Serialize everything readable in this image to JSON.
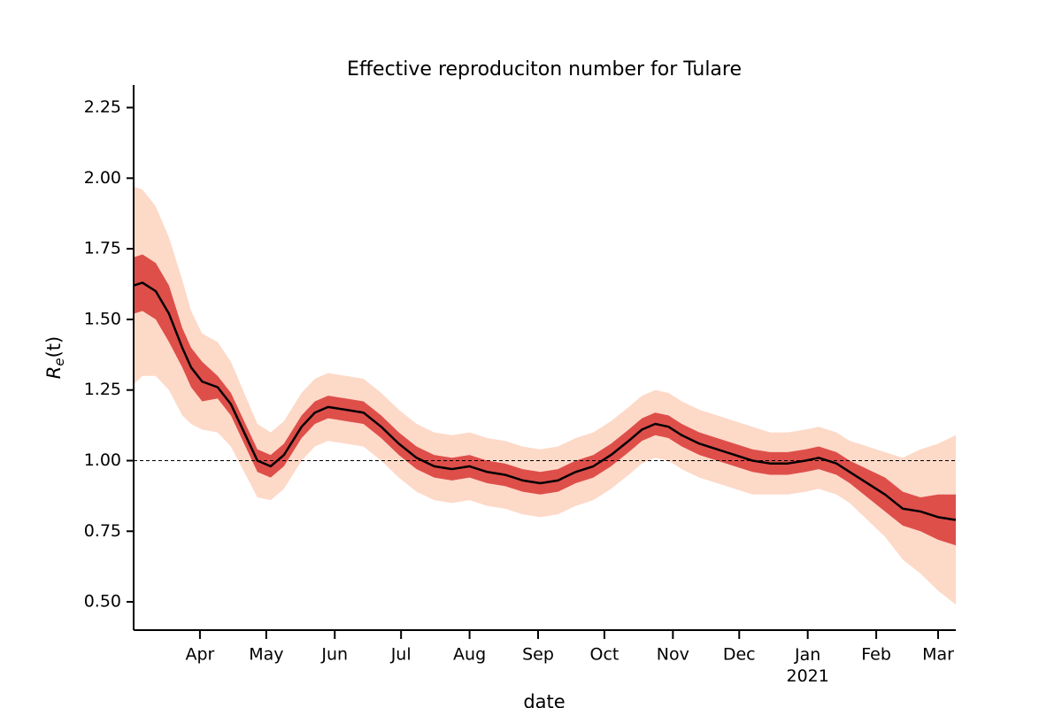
{
  "chart_data": {
    "type": "line",
    "title": "Effective reproduciton number for Tulare",
    "xlabel": "date",
    "ylabel": [
      "R",
      "e",
      "(t)"
    ],
    "xlim": [
      0,
      372
    ],
    "ylim": [
      0.4,
      2.33
    ],
    "yticks": [
      {
        "value": 0.5,
        "label": "0.50"
      },
      {
        "value": 0.75,
        "label": "0.75"
      },
      {
        "value": 1,
        "label": "1.00"
      },
      {
        "value": 1.25,
        "label": "1.25"
      },
      {
        "value": 1.5,
        "label": "1.50"
      },
      {
        "value": 1.75,
        "label": "1.75"
      },
      {
        "value": 2,
        "label": "2.00"
      },
      {
        "value": 2.25,
        "label": "2.25"
      }
    ],
    "xticks": [
      {
        "value": 30,
        "label": "Apr"
      },
      {
        "value": 60,
        "label": "May"
      },
      {
        "value": 91,
        "label": "Jun"
      },
      {
        "value": 121,
        "label": "Jul"
      },
      {
        "value": 152,
        "label": "Aug"
      },
      {
        "value": 183,
        "label": "Sep"
      },
      {
        "value": 213,
        "label": "Oct"
      },
      {
        "value": 244,
        "label": "Nov"
      },
      {
        "value": 274,
        "label": "Dec"
      },
      {
        "value": 305,
        "label": "Jan\n2021"
      },
      {
        "value": 336,
        "label": "Feb"
      },
      {
        "value": 364,
        "label": "Mar"
      }
    ],
    "reference_line": 1,
    "x": [
      0,
      4,
      10,
      16,
      22,
      26,
      31,
      38,
      44,
      50,
      56,
      62,
      68,
      76,
      82,
      88,
      96,
      104,
      112,
      120,
      128,
      136,
      144,
      152,
      160,
      168,
      176,
      184,
      192,
      200,
      208,
      216,
      224,
      230,
      236,
      242,
      248,
      256,
      264,
      272,
      280,
      288,
      296,
      304,
      310,
      318,
      324,
      332,
      340,
      348,
      356,
      364,
      372
    ],
    "bands": [
      {
        "color": "#fdd9c8",
        "lower": [
          1.27,
          1.3,
          1.3,
          1.25,
          1.16,
          1.13,
          1.11,
          1.1,
          1.05,
          0.96,
          0.87,
          0.86,
          0.9,
          1.0,
          1.05,
          1.07,
          1.06,
          1.05,
          1.0,
          0.94,
          0.89,
          0.86,
          0.85,
          0.86,
          0.84,
          0.83,
          0.81,
          0.8,
          0.81,
          0.84,
          0.86,
          0.9,
          0.95,
          0.99,
          1.01,
          1.0,
          0.97,
          0.94,
          0.92,
          0.9,
          0.88,
          0.88,
          0.88,
          0.89,
          0.9,
          0.88,
          0.85,
          0.79,
          0.73,
          0.65,
          0.6,
          0.54,
          0.49
        ],
        "upper": [
          1.97,
          1.96,
          1.9,
          1.79,
          1.64,
          1.53,
          1.45,
          1.42,
          1.35,
          1.24,
          1.13,
          1.1,
          1.14,
          1.24,
          1.29,
          1.31,
          1.3,
          1.29,
          1.24,
          1.18,
          1.13,
          1.1,
          1.09,
          1.1,
          1.08,
          1.07,
          1.05,
          1.04,
          1.05,
          1.08,
          1.1,
          1.14,
          1.19,
          1.23,
          1.25,
          1.24,
          1.21,
          1.18,
          1.16,
          1.14,
          1.12,
          1.1,
          1.1,
          1.11,
          1.12,
          1.1,
          1.07,
          1.05,
          1.03,
          1.01,
          1.04,
          1.06,
          1.09
        ]
      },
      {
        "color": "#d32020",
        "lower": [
          1.52,
          1.53,
          1.5,
          1.42,
          1.33,
          1.26,
          1.21,
          1.22,
          1.16,
          1.06,
          0.96,
          0.94,
          0.98,
          1.08,
          1.13,
          1.15,
          1.14,
          1.13,
          1.08,
          1.02,
          0.97,
          0.94,
          0.93,
          0.94,
          0.92,
          0.91,
          0.89,
          0.88,
          0.89,
          0.92,
          0.94,
          0.98,
          1.03,
          1.07,
          1.09,
          1.08,
          1.05,
          1.02,
          1.0,
          0.98,
          0.96,
          0.95,
          0.95,
          0.96,
          0.97,
          0.95,
          0.92,
          0.87,
          0.82,
          0.77,
          0.75,
          0.72,
          0.7
        ],
        "upper": [
          1.72,
          1.73,
          1.7,
          1.62,
          1.47,
          1.4,
          1.35,
          1.3,
          1.24,
          1.14,
          1.04,
          1.02,
          1.06,
          1.16,
          1.21,
          1.23,
          1.22,
          1.21,
          1.16,
          1.1,
          1.05,
          1.02,
          1.01,
          1.02,
          1.0,
          0.99,
          0.97,
          0.96,
          0.97,
          1.0,
          1.02,
          1.06,
          1.11,
          1.15,
          1.17,
          1.16,
          1.13,
          1.1,
          1.08,
          1.06,
          1.04,
          1.03,
          1.03,
          1.04,
          1.05,
          1.03,
          1.0,
          0.97,
          0.94,
          0.89,
          0.87,
          0.88,
          0.88
        ]
      }
    ],
    "color": "#000000",
    "values": [
      1.62,
      1.63,
      1.6,
      1.52,
      1.4,
      1.33,
      1.28,
      1.26,
      1.2,
      1.1,
      1.0,
      0.98,
      1.02,
      1.12,
      1.17,
      1.19,
      1.18,
      1.17,
      1.12,
      1.06,
      1.01,
      0.98,
      0.97,
      0.98,
      0.96,
      0.95,
      0.93,
      0.92,
      0.93,
      0.96,
      0.98,
      1.02,
      1.07,
      1.11,
      1.13,
      1.12,
      1.09,
      1.06,
      1.04,
      1.02,
      1.0,
      0.99,
      0.99,
      1.0,
      1.01,
      0.99,
      0.96,
      0.92,
      0.88,
      0.83,
      0.82,
      0.8,
      0.79
    ]
  }
}
